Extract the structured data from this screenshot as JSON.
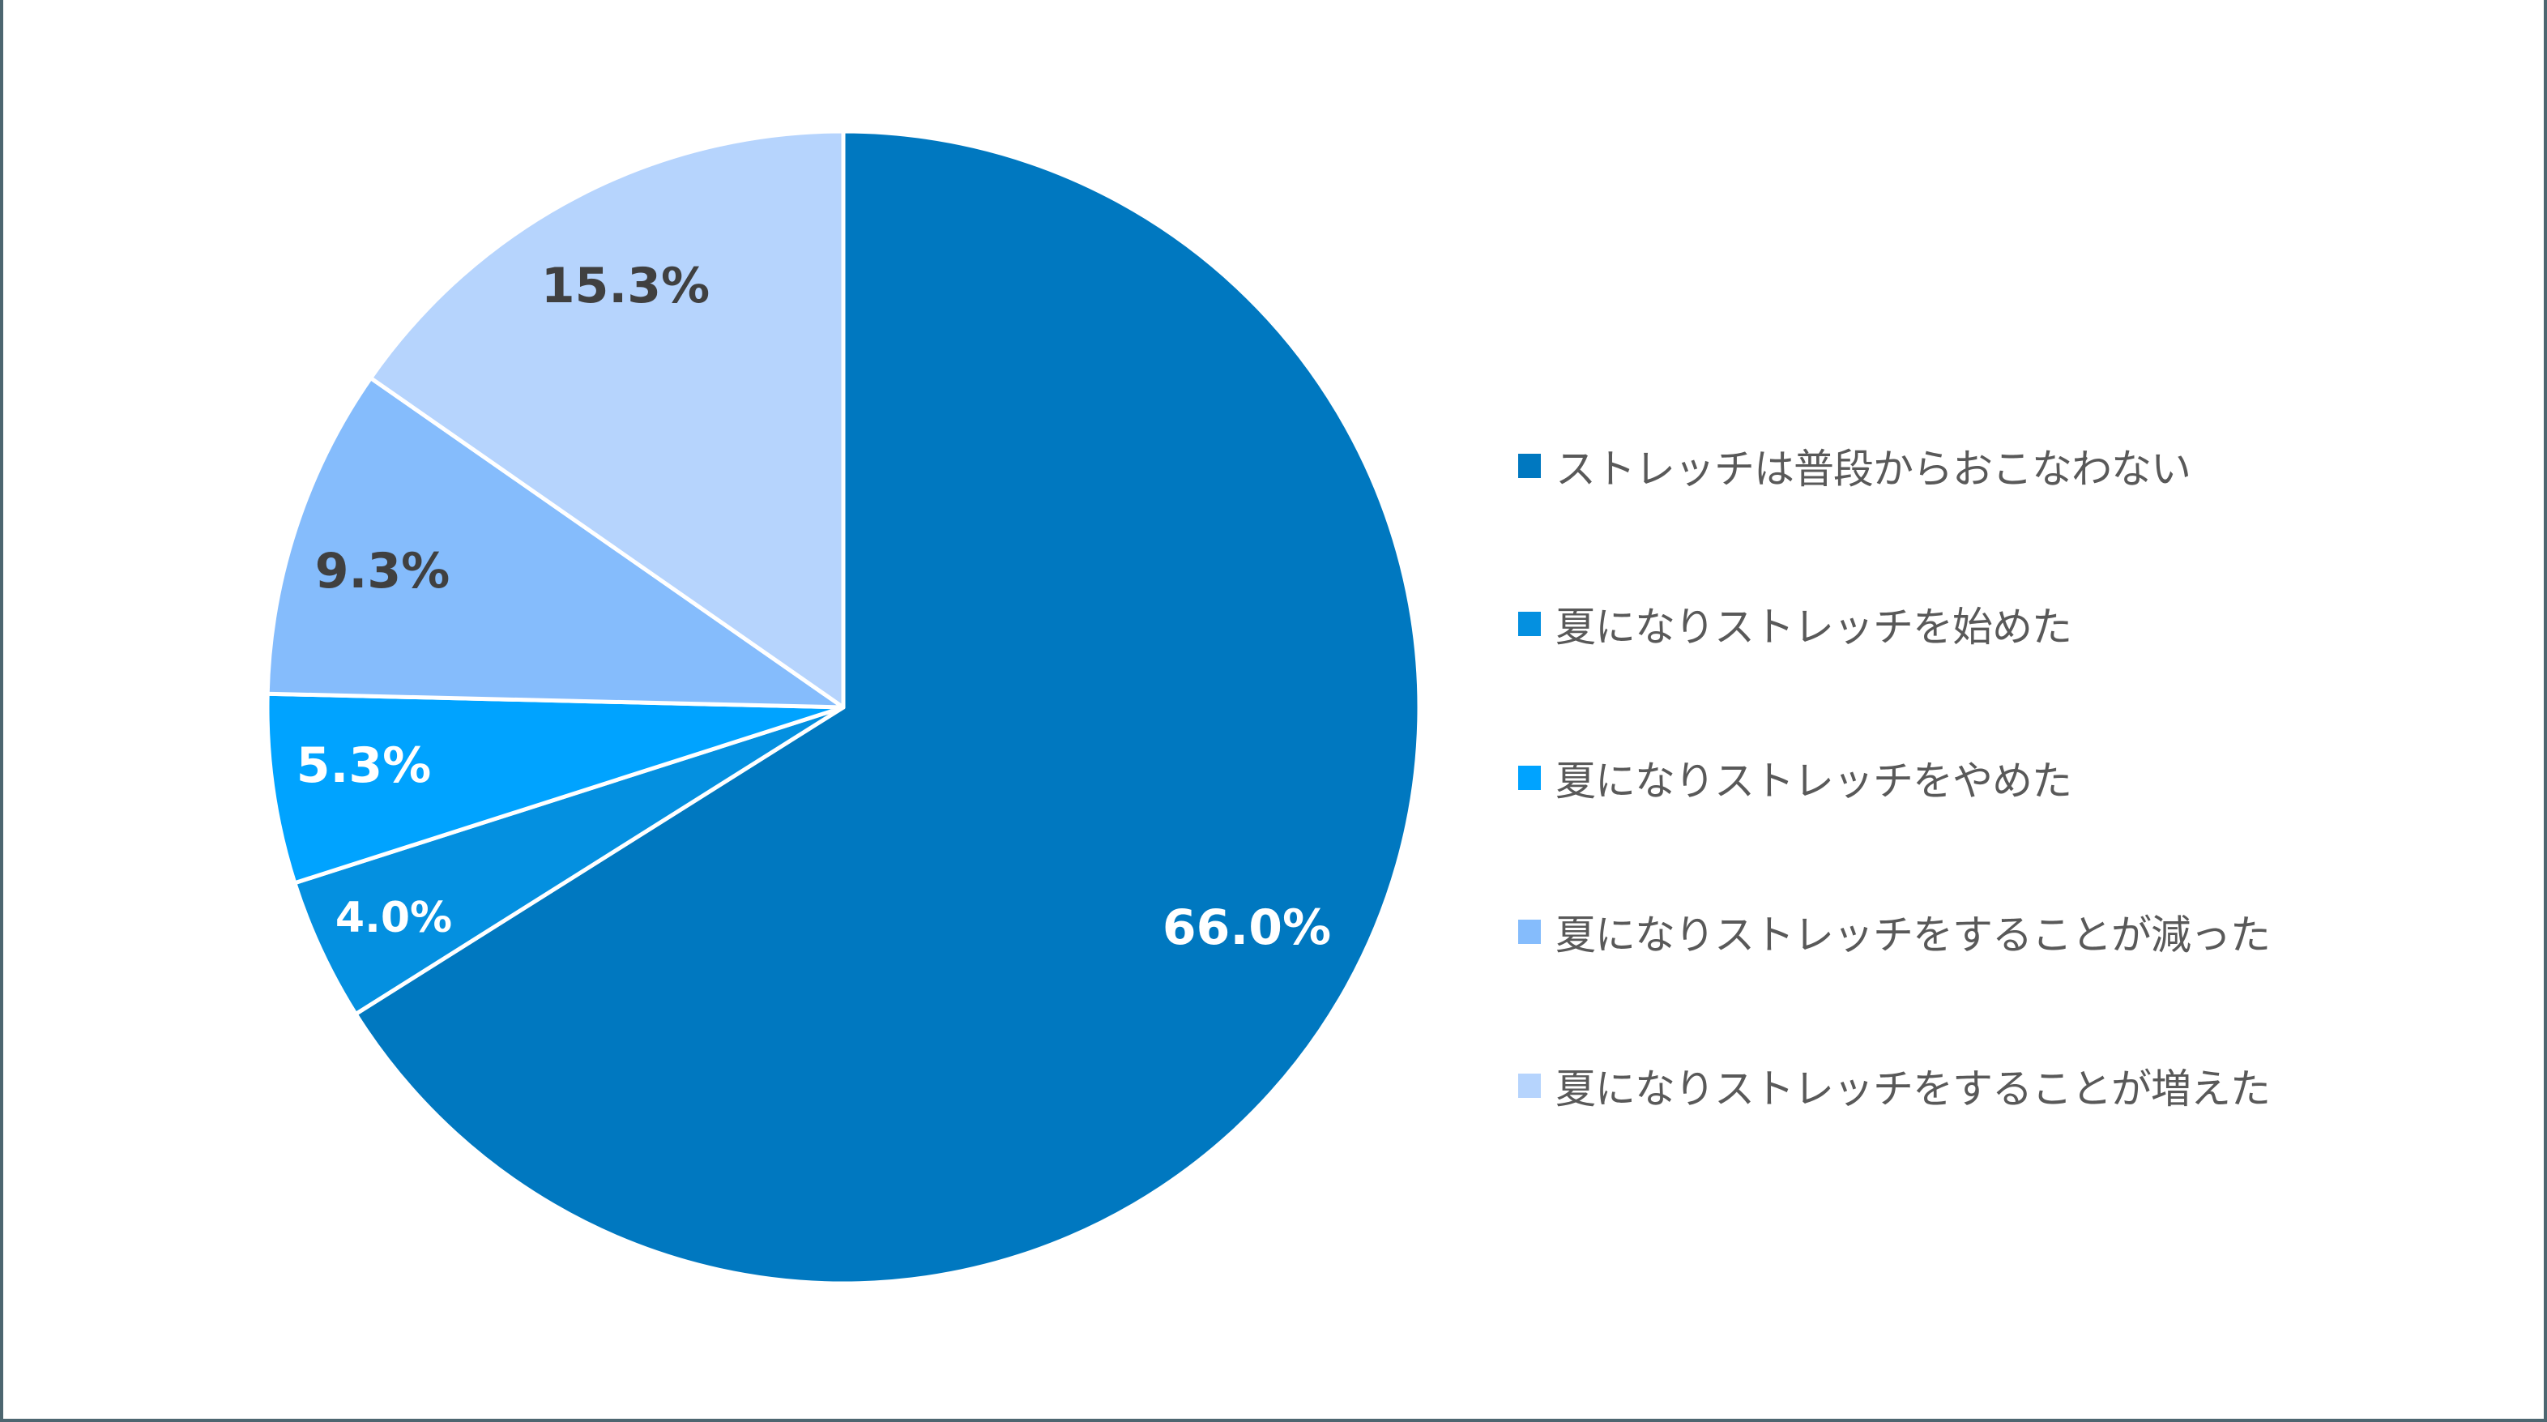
{
  "chart_data": {
    "type": "pie",
    "title": "",
    "start_angle_deg": 0,
    "direction": "clockwise",
    "legend_position": "right",
    "categories": [
      "ストレッチは普段からおこなわない",
      "夏になりストレッチを始めた",
      "夏になりストレッチをやめた",
      "夏になりストレッチをすることが減った",
      "夏になりストレッチをすることが増えた"
    ],
    "values": [
      66.0,
      4.0,
      5.3,
      9.3,
      15.3
    ],
    "labels": [
      "66.0%",
      "4.0%",
      "5.3%",
      "9.3%",
      "15.3%"
    ],
    "colors": [
      "#0078c0",
      "#0490e0",
      "#00a3ff",
      "#85bcfc",
      "#b6d4fd"
    ],
    "label_colors": [
      "#ffffff",
      "#ffffff",
      "#ffffff",
      "#404040",
      "#404040"
    ],
    "unit": "%"
  },
  "legend": {
    "items": [
      {
        "label": "ストレッチは普段からおこなわない",
        "color": "#0078c0"
      },
      {
        "label": "夏になりストレッチを始めた",
        "color": "#0490e0"
      },
      {
        "label": "夏になりストレッチをやめた",
        "color": "#00a3ff"
      },
      {
        "label": "夏になりストレッチをすることが減った",
        "color": "#85bcfc"
      },
      {
        "label": "夏になりストレッチをすることが増えた",
        "color": "#b6d4fd"
      }
    ]
  },
  "slice_labels": [
    "66.0%",
    "4.0%",
    "5.3%",
    "9.3%",
    "15.3%"
  ]
}
